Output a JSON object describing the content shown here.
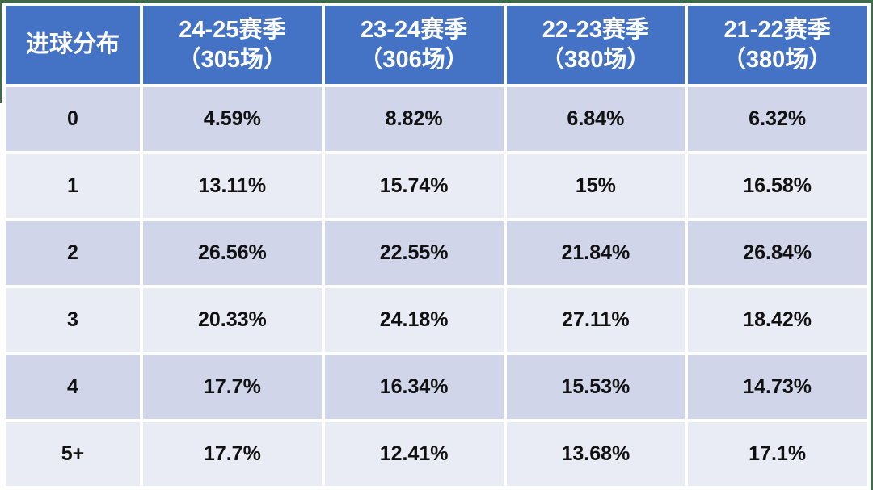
{
  "table": {
    "header": {
      "label_column": "进球分布",
      "seasons": [
        {
          "line1": "24-25赛季",
          "line2": "（305场）"
        },
        {
          "line1": "23-24赛季",
          "line2": "（306场）"
        },
        {
          "line1": "22-23赛季",
          "line2": "（380场）"
        },
        {
          "line1": "21-22赛季",
          "line2": "（380场）"
        }
      ]
    },
    "rows": [
      {
        "label": "0",
        "values": [
          "4.59%",
          "8.82%",
          "6.84%",
          "6.32%"
        ]
      },
      {
        "label": "1",
        "values": [
          "13.11%",
          "15.74%",
          "15%",
          "16.58%"
        ]
      },
      {
        "label": "2",
        "values": [
          "26.56%",
          "22.55%",
          "21.84%",
          "26.84%"
        ]
      },
      {
        "label": "3",
        "values": [
          "20.33%",
          "24.18%",
          "27.11%",
          "18.42%"
        ]
      },
      {
        "label": "4",
        "values": [
          "17.7%",
          "16.34%",
          "15.53%",
          "14.73%"
        ]
      },
      {
        "label": "5+",
        "values": [
          "17.7%",
          "12.41%",
          "13.68%",
          "17.1%"
        ]
      }
    ]
  },
  "chart_data": {
    "type": "table",
    "title": "进球分布",
    "unit": "%",
    "categories": [
      "0",
      "1",
      "2",
      "3",
      "4",
      "5+"
    ],
    "row_header": "进球分布",
    "series": [
      {
        "name": "24-25赛季（305场）",
        "values": [
          4.59,
          13.11,
          26.56,
          20.33,
          17.7,
          17.7
        ]
      },
      {
        "name": "23-24赛季（306场）",
        "values": [
          8.82,
          15.74,
          22.55,
          24.18,
          16.34,
          12.41
        ]
      },
      {
        "name": "22-23赛季（380场）",
        "values": [
          6.84,
          15,
          21.84,
          27.11,
          15.53,
          13.68
        ]
      },
      {
        "name": "21-22赛季（380场）",
        "values": [
          6.32,
          16.58,
          26.84,
          18.42,
          14.73,
          17.1
        ]
      }
    ]
  },
  "colors": {
    "header_bg": "#4472C4",
    "header_text": "#FFFFFF",
    "band_dark": "#D0D5E9",
    "band_light": "#E9EBF5",
    "separator": "#FFFFFF",
    "body_text": "#111111",
    "edge_green": "#3E6B4A"
  }
}
